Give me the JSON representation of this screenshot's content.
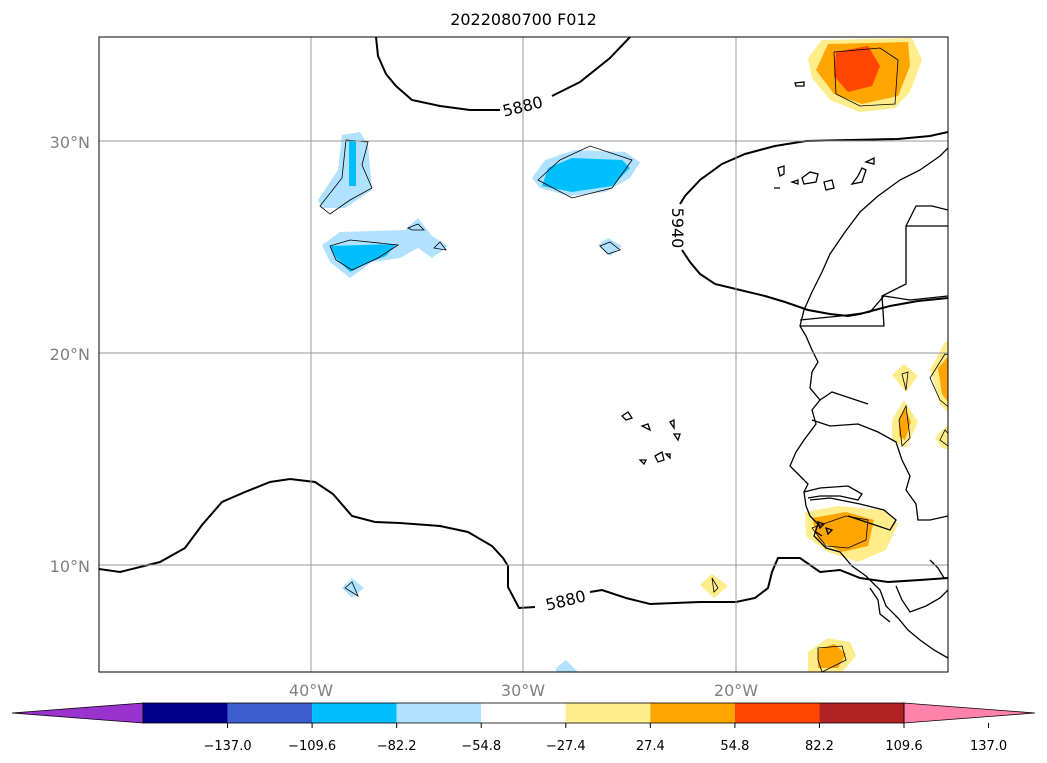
{
  "title": "2022080700 F012",
  "axes": {
    "lat_labels": [
      "30°N",
      "20°N",
      "10°N"
    ],
    "lon_labels": [
      "40°W",
      "30°W",
      "20°W"
    ]
  },
  "contour_labels": [
    "5880",
    "5940",
    "5880"
  ],
  "colorbar": {
    "tick_labels": [
      "−137.0",
      "−109.6",
      "−82.2",
      "−54.8",
      "−27.4",
      "27.4",
      "54.8",
      "82.2",
      "109.6",
      "137.0"
    ],
    "colors": [
      "#9a32cd",
      "#00008b",
      "#3a5fcd",
      "#00bfff",
      "#b0e2ff",
      "#ffffff",
      "#ffec8b",
      "#ffa500",
      "#ff4500",
      "#b22222",
      "#ff82ab"
    ]
  }
}
